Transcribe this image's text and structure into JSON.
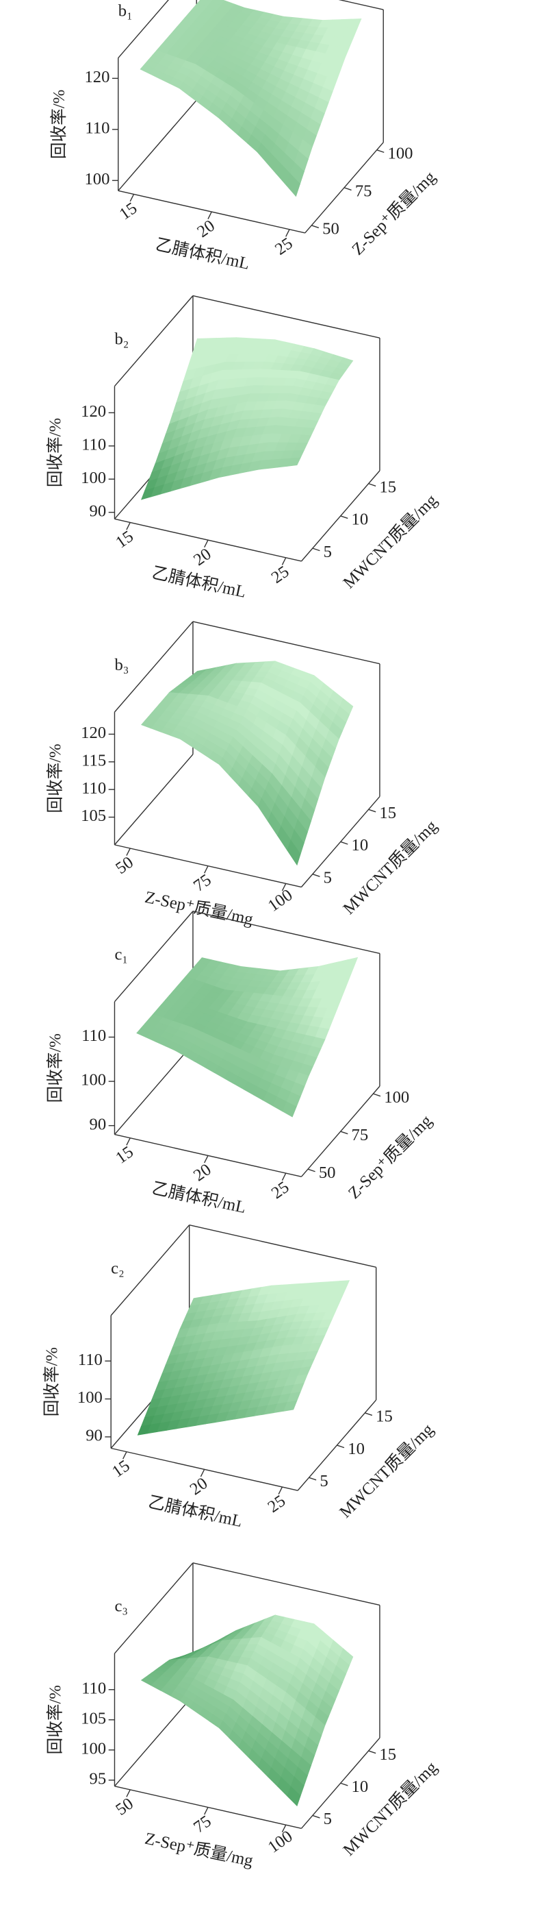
{
  "chart_data": [
    {
      "type": "surface",
      "panel_label": "b₁",
      "xlabel": "乙腈体积/mL",
      "ylabel": "Z-Sep⁺质量/mg",
      "zlabel": "回收率/%",
      "color": "#3f9a58",
      "xlim": [
        14,
        26
      ],
      "xticks": [
        15,
        20,
        25
      ],
      "ylim": [
        45,
        105
      ],
      "yticks": [
        50,
        75,
        100
      ],
      "zlim": [
        98,
        124
      ],
      "zticks": [
        100,
        110,
        120
      ],
      "x": [
        15,
        17.5,
        20,
        22.5,
        25
      ],
      "y": [
        50,
        62.5,
        75,
        87.5,
        100
      ],
      "z": [
        [
          121,
          119,
          115,
          110,
          103
        ],
        [
          121,
          120,
          117,
          113,
          109
        ],
        [
          121,
          120,
          118,
          116,
          114
        ],
        [
          121,
          120,
          119,
          119,
          119
        ],
        [
          121,
          120,
          120,
          121,
          123
        ]
      ]
    },
    {
      "type": "surface",
      "panel_label": "b₂",
      "xlabel": "乙腈体积/mL",
      "ylabel": "MWCNT质量/mg",
      "zlabel": "回收率/%",
      "color": "#3f9a58",
      "xlim": [
        14,
        26
      ],
      "xticks": [
        15,
        20,
        25
      ],
      "ylim": [
        3,
        17
      ],
      "yticks": [
        5,
        10,
        15
      ],
      "zlim": [
        88,
        128
      ],
      "zticks": [
        90,
        100,
        110,
        120
      ],
      "x": [
        15,
        17.5,
        20,
        22.5,
        25
      ],
      "y": [
        5,
        7.5,
        10,
        12.5,
        15
      ],
      "z": [
        [
          91,
          97,
          103,
          108,
          112
        ],
        [
          97,
          104,
          110,
          114,
          116
        ],
        [
          104,
          111,
          116,
          119,
          120
        ],
        [
          112,
          118,
          121,
          123,
          123
        ],
        [
          120,
          123,
          125,
          125,
          124
        ]
      ]
    },
    {
      "type": "surface",
      "panel_label": "b₃",
      "xlabel": "Z-Sep⁺质量/mg",
      "ylabel": "MWCNT质量/mg",
      "zlabel": "回收率/%",
      "color": "#3f9a58",
      "xlim": [
        45,
        105
      ],
      "xticks": [
        50,
        75,
        100
      ],
      "ylim": [
        3,
        17
      ],
      "yticks": [
        5,
        10,
        15
      ],
      "zlim": [
        100,
        124
      ],
      "zticks": [
        105,
        110,
        115,
        120
      ],
      "x": [
        50,
        62.5,
        75,
        87.5,
        100
      ],
      "y": [
        5,
        7.5,
        10,
        12.5,
        15
      ],
      "z": [
        [
          120,
          119,
          116,
          110,
          101
        ],
        [
          120,
          120,
          118,
          113,
          106
        ],
        [
          120,
          121,
          120,
          117,
          111
        ],
        [
          119,
          121,
          122,
          120,
          115
        ],
        [
          118,
          121,
          123,
          122,
          118
        ]
      ]
    },
    {
      "type": "surface",
      "panel_label": "c₁",
      "xlabel": "乙腈体积/mL",
      "ylabel": "Z-Sep⁺质量/mg",
      "zlabel": "回收率/%",
      "color": "#3f9a58",
      "xlim": [
        14,
        26
      ],
      "xticks": [
        15,
        20,
        25
      ],
      "ylim": [
        45,
        105
      ],
      "yticks": [
        50,
        75,
        100
      ],
      "zlim": [
        88,
        118
      ],
      "zticks": [
        90,
        100,
        110
      ],
      "x": [
        15,
        17.5,
        20,
        22.5,
        25
      ],
      "y": [
        50,
        62.5,
        75,
        87.5,
        100
      ],
      "z": [
        [
          110,
          108,
          105,
          102,
          99
        ],
        [
          110,
          109,
          107,
          105,
          104
        ],
        [
          110,
          109,
          108,
          108,
          108
        ],
        [
          110,
          109,
          110,
          111,
          113
        ],
        [
          110,
          110,
          111,
          114,
          118
        ]
      ]
    },
    {
      "type": "surface",
      "panel_label": "c₂",
      "xlabel": "乙腈体积/mL",
      "ylabel": "MWCNT质量/mg",
      "zlabel": "回收率/%",
      "color": "#3f9a58",
      "xlim": [
        14,
        26
      ],
      "xticks": [
        15,
        20,
        25
      ],
      "ylim": [
        3,
        17
      ],
      "yticks": [
        5,
        10,
        15
      ],
      "zlim": [
        87,
        122
      ],
      "zticks": [
        90,
        100,
        110
      ],
      "x": [
        15,
        17.5,
        20,
        22.5,
        25
      ],
      "y": [
        5,
        7.5,
        10,
        12.5,
        15
      ],
      "z": [
        [
          88,
          92,
          96,
          100,
          104
        ],
        [
          93,
          97,
          101,
          105,
          109
        ],
        [
          98,
          102,
          106,
          110,
          113
        ],
        [
          103,
          107,
          110,
          114,
          117
        ],
        [
          107,
          111,
          115,
          118,
          121
        ]
      ]
    },
    {
      "type": "surface",
      "panel_label": "c₃",
      "xlabel": "Z-Sep⁺质量/mg",
      "ylabel": "MWCNT质量/mg",
      "zlabel": "回收率/%",
      "color": "#3f9a58",
      "xlim": [
        45,
        105
      ],
      "xticks": [
        50,
        75,
        100
      ],
      "ylim": [
        3,
        17
      ],
      "yticks": [
        5,
        10,
        15
      ],
      "zlim": [
        94,
        116
      ],
      "zticks": [
        95,
        100,
        105,
        110
      ],
      "x": [
        50,
        62.5,
        75,
        87.5,
        100
      ],
      "y": [
        5,
        7.5,
        10,
        12.5,
        15
      ],
      "z": [
        [
          110,
          108,
          105,
          100,
          95
        ],
        [
          109,
          109,
          107,
          103,
          99
        ],
        [
          108,
          110,
          110,
          107,
          103
        ],
        [
          106,
          110,
          112,
          110,
          106
        ],
        [
          104,
          109,
          113,
          113,
          109
        ]
      ]
    }
  ]
}
